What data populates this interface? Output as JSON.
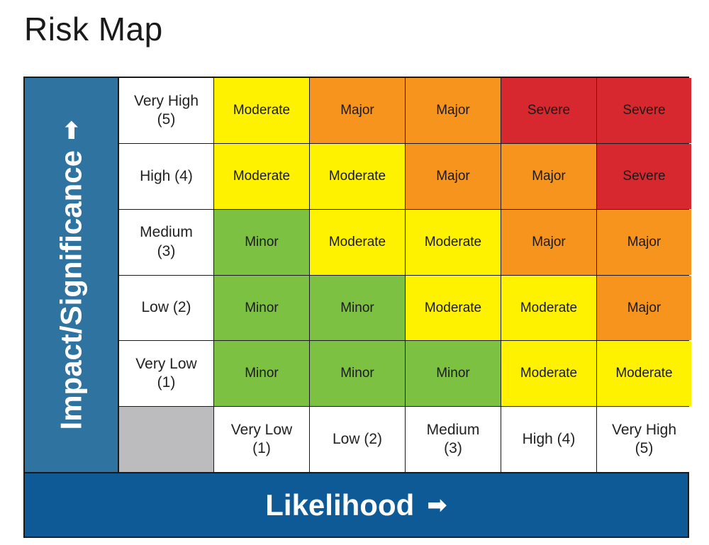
{
  "title": "Risk Map",
  "y_axis": {
    "label": "Impact/Significance",
    "arrow": "➡"
  },
  "x_axis": {
    "label": "Likelihood",
    "arrow": "➡"
  },
  "colors": {
    "minor": "#7dc143",
    "moderate": "#fef200",
    "major": "#f7941d",
    "severe": "#d7282f",
    "y_axis_bg": "#2f73a1",
    "x_axis_bg": "#0d5a96",
    "corner": "#bcbcbf"
  },
  "impact_levels": [
    "Very High\n(5)",
    "High (4)",
    "Medium\n(3)",
    "Low (2)",
    "Very Low\n(1)"
  ],
  "likelihood_levels": [
    "Very Low\n(1)",
    "Low (2)",
    "Medium\n(3)",
    "High (4)",
    "Very High\n(5)"
  ],
  "matrix": [
    [
      "Moderate",
      "Major",
      "Major",
      "Severe",
      "Severe"
    ],
    [
      "Moderate",
      "Moderate",
      "Major",
      "Major",
      "Severe"
    ],
    [
      "Minor",
      "Moderate",
      "Moderate",
      "Major",
      "Major"
    ],
    [
      "Minor",
      "Minor",
      "Moderate",
      "Moderate",
      "Major"
    ],
    [
      "Minor",
      "Minor",
      "Minor",
      "Moderate",
      "Moderate"
    ]
  ]
}
